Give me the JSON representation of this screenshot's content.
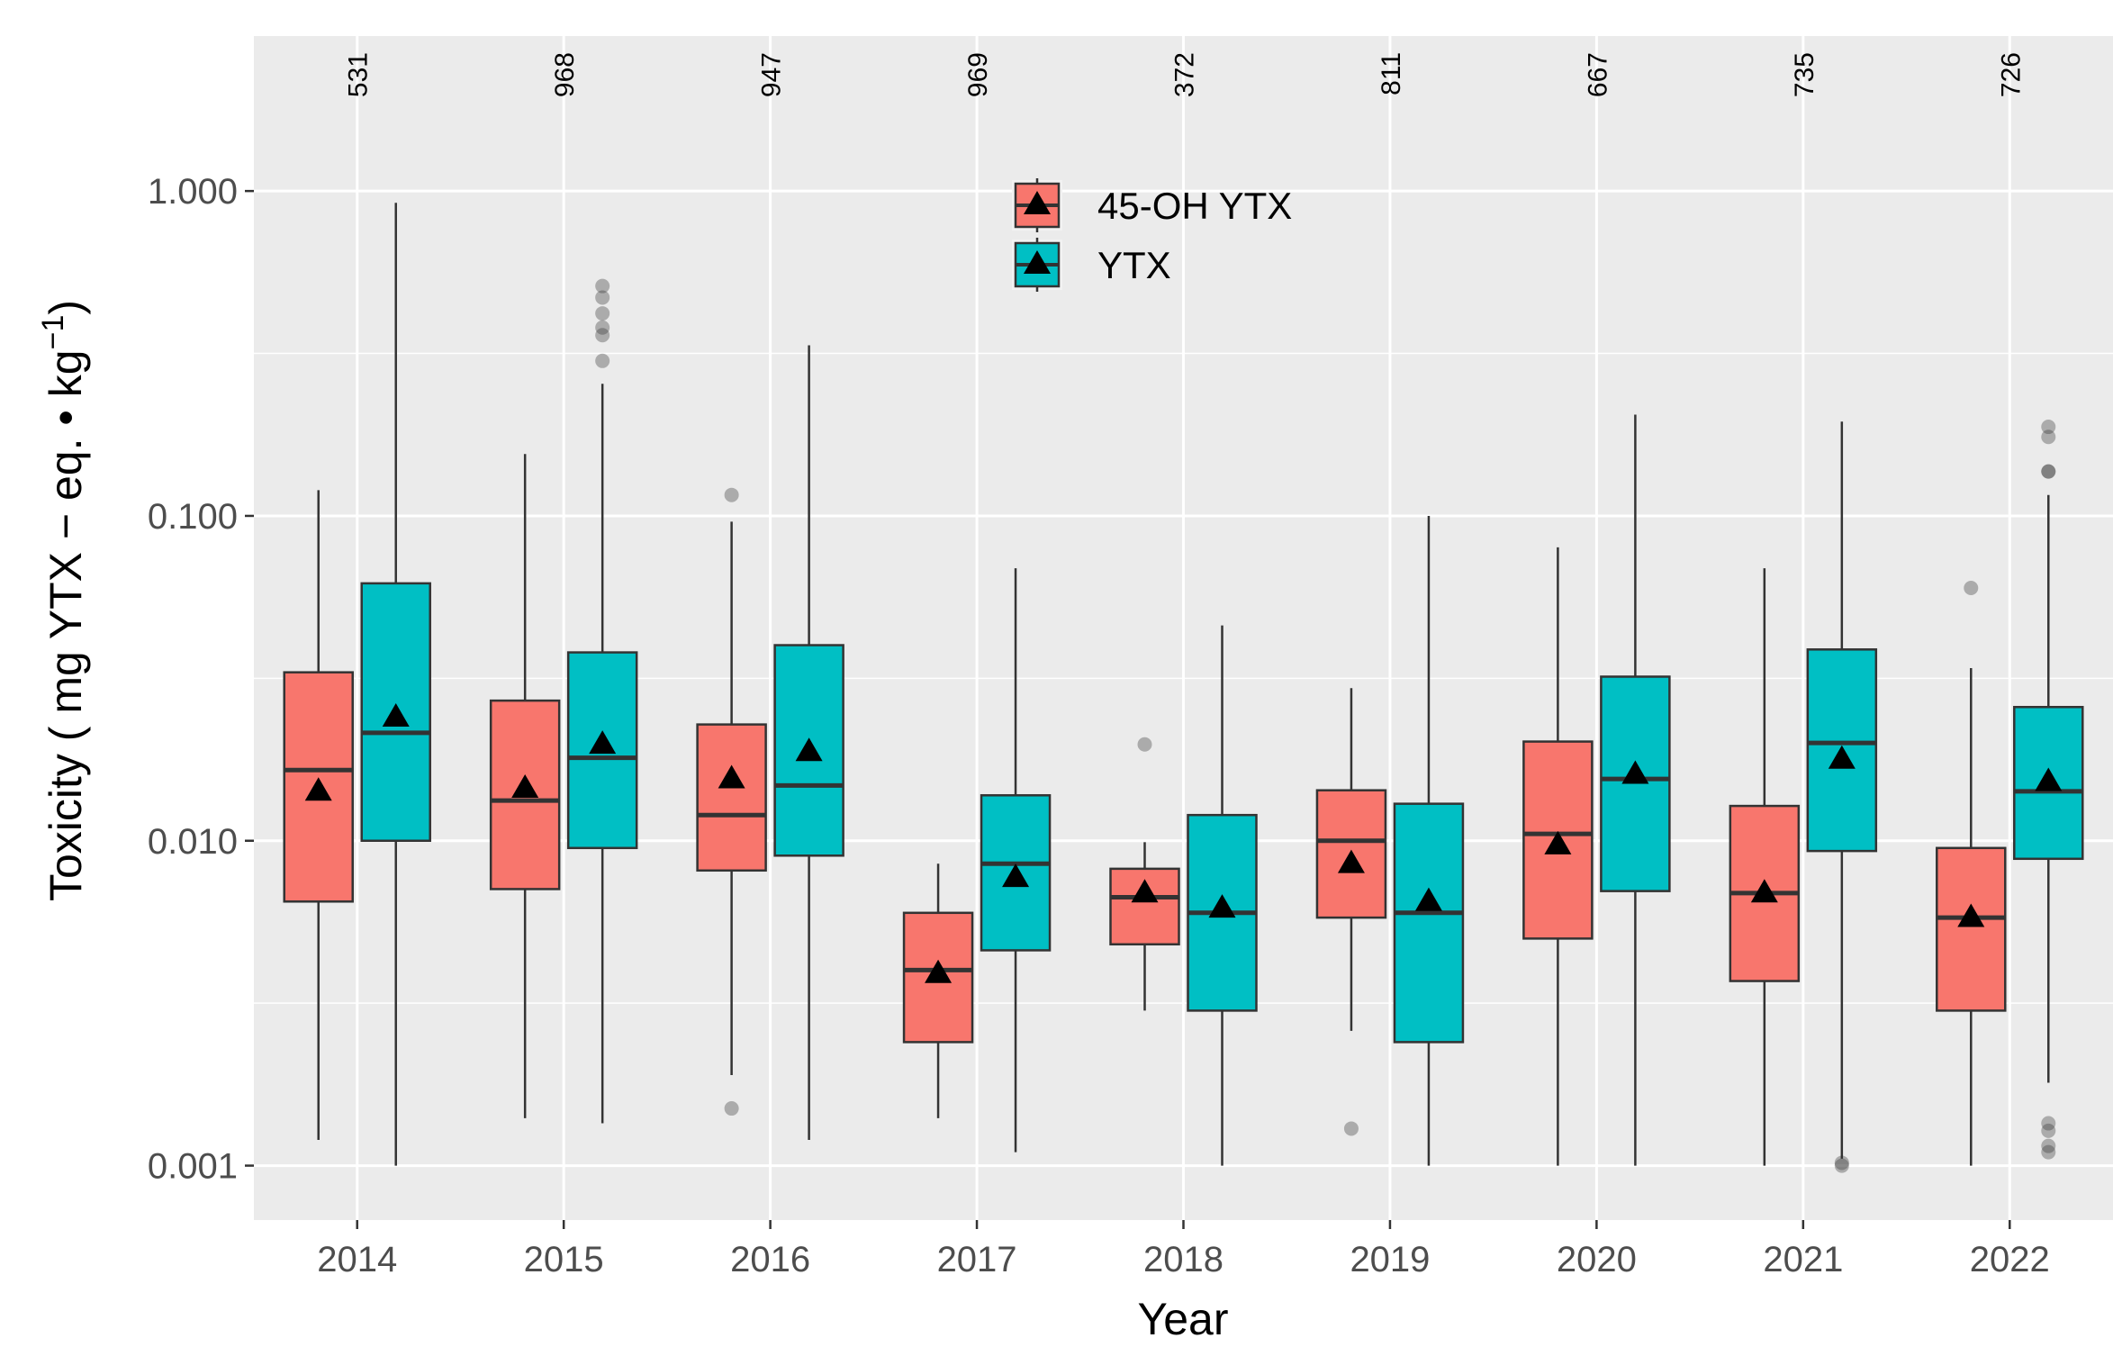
{
  "chart_data": {
    "type": "boxplot",
    "title": "",
    "xlabel": "Year",
    "ylabel": "Toxicity ( mg YTX − eq. • kg",
    "ylabel_superscript": "−1",
    "ylabel_close": ")",
    "y_scale": "log10",
    "ylim": [
      0.00068,
      3.0
    ],
    "y_ticks": [
      {
        "value": 0.001,
        "label": "0.001"
      },
      {
        "value": 0.01,
        "label": "0.010"
      },
      {
        "value": 0.1,
        "label": "0.100"
      },
      {
        "value": 1.0,
        "label": "1.000"
      }
    ],
    "categories": [
      "2014",
      "2015",
      "2016",
      "2017",
      "2018",
      "2019",
      "2020",
      "2021",
      "2022"
    ],
    "counts": [
      "531",
      "968",
      "947",
      "969",
      "372",
      "811",
      "667",
      "735",
      "726"
    ],
    "legend": {
      "position": "top-center",
      "entries": [
        {
          "name": "45-OH YTX",
          "color": "#F8766D"
        },
        {
          "name": "YTX",
          "color": "#00BFC4"
        }
      ]
    },
    "series": [
      {
        "name": "45-OH YTX",
        "color": "#F8766D",
        "boxes": [
          {
            "whisker_low": 0.0012,
            "q1": 0.0065,
            "median": 0.0165,
            "q3": 0.033,
            "whisker_high": 0.12,
            "mean": 0.0142,
            "outliers": []
          },
          {
            "whisker_low": 0.0014,
            "q1": 0.0071,
            "median": 0.0133,
            "q3": 0.027,
            "whisker_high": 0.155,
            "mean": 0.0145,
            "outliers": []
          },
          {
            "whisker_low": 0.0019,
            "q1": 0.0081,
            "median": 0.012,
            "q3": 0.0228,
            "whisker_high": 0.096,
            "mean": 0.0155,
            "outliers": [
              0.116,
              0.0015
            ]
          },
          {
            "whisker_low": 0.0014,
            "q1": 0.0024,
            "median": 0.004,
            "q3": 0.006,
            "whisker_high": 0.0085,
            "mean": 0.0039,
            "outliers": []
          },
          {
            "whisker_low": 0.003,
            "q1": 0.0048,
            "median": 0.0067,
            "q3": 0.0082,
            "whisker_high": 0.0099,
            "mean": 0.0069,
            "outliers": [
              0.0198
            ]
          },
          {
            "whisker_low": 0.0026,
            "q1": 0.0058,
            "median": 0.01,
            "q3": 0.0143,
            "whisker_high": 0.0295,
            "mean": 0.0085,
            "outliers": [
              0.0013
            ]
          },
          {
            "whisker_low": 0.001,
            "q1": 0.005,
            "median": 0.0105,
            "q3": 0.0202,
            "whisker_high": 0.08,
            "mean": 0.0097,
            "outliers": []
          },
          {
            "whisker_low": 0.001,
            "q1": 0.0037,
            "median": 0.0069,
            "q3": 0.0128,
            "whisker_high": 0.069,
            "mean": 0.0069,
            "outliers": []
          },
          {
            "whisker_low": 0.001,
            "q1": 0.003,
            "median": 0.0058,
            "q3": 0.0095,
            "whisker_high": 0.034,
            "mean": 0.0058,
            "outliers": [
              0.06
            ]
          }
        ]
      },
      {
        "name": "YTX",
        "color": "#00BFC4",
        "boxes": [
          {
            "whisker_low": 0.001,
            "q1": 0.01,
            "median": 0.0215,
            "q3": 0.062,
            "whisker_high": 0.92,
            "mean": 0.024,
            "outliers": []
          },
          {
            "whisker_low": 0.00135,
            "q1": 0.0095,
            "median": 0.018,
            "q3": 0.038,
            "whisker_high": 0.255,
            "mean": 0.0198,
            "outliers": [
              0.3,
              0.36,
              0.38,
              0.42,
              0.47,
              0.51
            ]
          },
          {
            "whisker_low": 0.0012,
            "q1": 0.009,
            "median": 0.0148,
            "q3": 0.04,
            "whisker_high": 0.335,
            "mean": 0.0188,
            "outliers": []
          },
          {
            "whisker_low": 0.0011,
            "q1": 0.0046,
            "median": 0.0085,
            "q3": 0.0138,
            "whisker_high": 0.069,
            "mean": 0.0077,
            "outliers": []
          },
          {
            "whisker_low": 0.001,
            "q1": 0.003,
            "median": 0.006,
            "q3": 0.012,
            "whisker_high": 0.046,
            "mean": 0.0062,
            "outliers": []
          },
          {
            "whisker_low": 0.001,
            "q1": 0.0024,
            "median": 0.006,
            "q3": 0.013,
            "whisker_high": 0.1,
            "mean": 0.0065,
            "outliers": []
          },
          {
            "whisker_low": 0.001,
            "q1": 0.007,
            "median": 0.0155,
            "q3": 0.032,
            "whisker_high": 0.205,
            "mean": 0.016,
            "outliers": []
          },
          {
            "whisker_low": 0.00105,
            "q1": 0.0093,
            "median": 0.02,
            "q3": 0.0388,
            "whisker_high": 0.195,
            "mean": 0.0178,
            "outliers": [
              0.00102,
              0.001
            ]
          },
          {
            "whisker_low": 0.0018,
            "q1": 0.0088,
            "median": 0.0142,
            "q3": 0.0258,
            "whisker_high": 0.116,
            "mean": 0.0152,
            "outliers": [
              0.188,
              0.175,
              0.137,
              0.137,
              0.00135,
              0.00128,
              0.00115,
              0.0011
            ]
          }
        ]
      }
    ]
  }
}
